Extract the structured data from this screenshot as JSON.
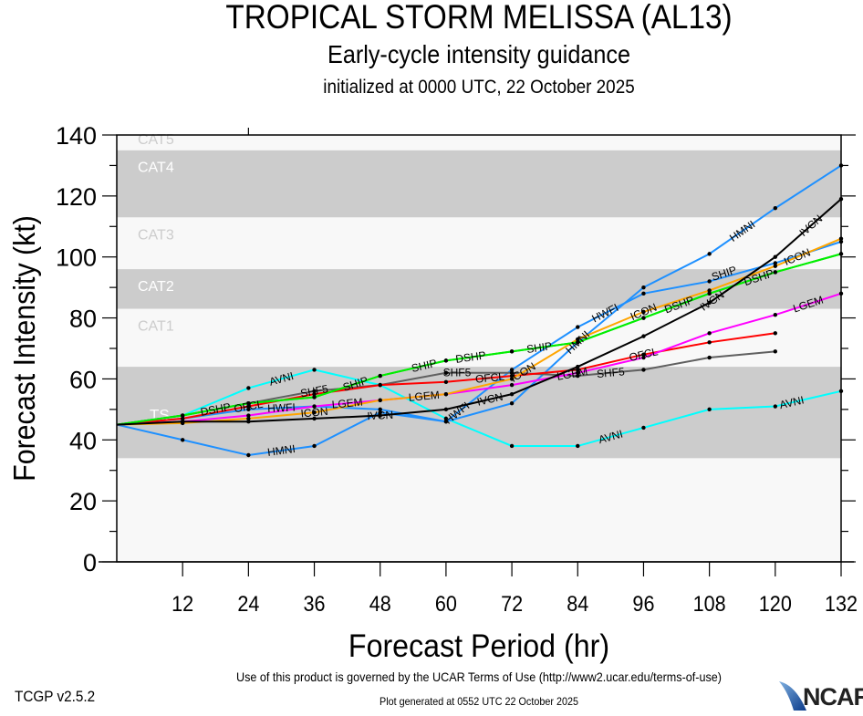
{
  "header": {
    "title": "TROPICAL STORM MELISSA (AL13)",
    "subtitle": "Early-cycle intensity guidance",
    "init_line": "initialized at 0000 UTC, 22 October 2025"
  },
  "footer": {
    "terms": "Use of this product is governed by the UCAR Terms of Use (http://www2.ucar.edu/terms-of-use)",
    "version": "TCGP v2.5.2",
    "generated": "Plot generated at 0552 UTC   22 October 2025",
    "logo": "NCAR"
  },
  "chart_data": {
    "type": "line",
    "title": "TROPICAL STORM MELISSA (AL13)",
    "xlabel": "Forecast Period (hr)",
    "ylabel": "Forecast Intensity (kt)",
    "xlim": [
      0,
      132
    ],
    "ylim": [
      0,
      140
    ],
    "xticks": [
      12,
      24,
      36,
      48,
      60,
      72,
      84,
      96,
      108,
      120,
      132
    ],
    "yticks": [
      0,
      20,
      40,
      60,
      80,
      100,
      120,
      140
    ],
    "grid": false,
    "category_bands": [
      {
        "label": "TS",
        "min": 34,
        "max": 64,
        "shade": "#cccccc",
        "label_color": "#ffffff"
      },
      {
        "label": "CAT1",
        "min": 64,
        "max": 83,
        "shade": "#f8f8f8",
        "label_color": "#cccccc"
      },
      {
        "label": "CAT2",
        "min": 83,
        "max": 96,
        "shade": "#cccccc",
        "label_color": "#ffffff"
      },
      {
        "label": "CAT3",
        "min": 96,
        "max": 113,
        "shade": "#f8f8f8",
        "label_color": "#cccccc"
      },
      {
        "label": "CAT4",
        "min": 113,
        "max": 135,
        "shade": "#cccccc",
        "label_color": "#ffffff"
      },
      {
        "label": "CAT5",
        "min": 135,
        "max": 140,
        "shade": "#f8f8f8",
        "label_color": "#cccccc"
      }
    ],
    "series": [
      {
        "name": "AVNI",
        "color": "#00ffff",
        "x": [
          0,
          12,
          24,
          36,
          48,
          60,
          72,
          84,
          96,
          108,
          120,
          132
        ],
        "y": [
          45,
          48,
          57,
          63,
          58,
          47,
          38,
          38,
          44,
          50,
          51,
          56
        ],
        "label_at": [
          30,
          90,
          123
        ]
      },
      {
        "name": "HMNI",
        "color": "#1e90ff",
        "x": [
          0,
          12,
          24,
          36,
          48,
          60,
          72,
          84,
          96,
          108,
          120,
          132
        ],
        "y": [
          45,
          40,
          35,
          38,
          49,
          46,
          52,
          72,
          90,
          101,
          116,
          130
        ],
        "label_at": [
          30,
          84,
          114
        ]
      },
      {
        "name": "HWFI",
        "color": "#1e90ff",
        "x": [
          0,
          12,
          24,
          36,
          48,
          60,
          72,
          84,
          96,
          108,
          120,
          132
        ],
        "y": [
          45,
          47,
          50,
          51,
          50,
          46,
          63,
          77,
          88,
          92,
          98,
          105
        ],
        "label_at": [
          30,
          62,
          86
        ]
      },
      {
        "name": "SHF5",
        "color": "#606060",
        "x": [
          0,
          12,
          24,
          36,
          48,
          60,
          72,
          84,
          96,
          108,
          120
        ],
        "y": [
          45,
          48,
          52,
          56,
          58,
          62,
          62,
          61,
          63,
          67,
          69
        ],
        "label_at": [
          30,
          62,
          90
        ]
      },
      {
        "name": "OFCL",
        "color": "#ff0000",
        "x": [
          0,
          12,
          24,
          36,
          48,
          60,
          72,
          84,
          96,
          108,
          120
        ],
        "y": [
          45,
          47,
          51,
          55,
          58,
          59,
          61,
          63,
          68,
          72,
          75
        ],
        "label_at": [
          30,
          62,
          90
        ]
      },
      {
        "name": "LGEM",
        "color": "#ff00ff",
        "x": [
          0,
          12,
          24,
          36,
          48,
          60,
          72,
          84,
          96,
          108,
          120,
          132
        ],
        "y": [
          45,
          46,
          48,
          51,
          53,
          55,
          58,
          62,
          67,
          75,
          81,
          88
        ],
        "label_at": [
          30,
          62,
          92,
          126
        ]
      },
      {
        "name": "ICON",
        "color": "#ffa500",
        "x": [
          0,
          12,
          24,
          36,
          48,
          60,
          72,
          84,
          96,
          108,
          120,
          132
        ],
        "y": [
          45,
          45.5,
          47,
          49,
          53,
          55,
          60,
          73,
          82,
          89,
          97,
          106
        ],
        "label_at": [
          30,
          62,
          90,
          124
        ]
      },
      {
        "name": "DSHP",
        "color": "#00ee00",
        "x": [
          0,
          12,
          24,
          36,
          48,
          60,
          72,
          84,
          96,
          108,
          120,
          132
        ],
        "y": [
          45,
          48,
          52,
          54,
          61,
          66,
          69,
          72,
          80,
          88,
          95,
          101
        ],
        "label_at": [
          30,
          60,
          92,
          126
        ]
      },
      {
        "name": "SHIP",
        "color": "#00ee00",
        "x": [
          0,
          12,
          24,
          36,
          48,
          60,
          72,
          84,
          96,
          108,
          120,
          132
        ],
        "y": [
          45,
          48,
          52,
          54,
          61,
          66,
          69,
          72,
          80,
          88,
          95,
          101
        ],
        "label_at": [
          30,
          62,
          92,
          122
        ]
      },
      {
        "name": "IVCN",
        "color": "#000000",
        "x": [
          0,
          12,
          24,
          36,
          48,
          60,
          72,
          84,
          96,
          108,
          120,
          132
        ],
        "y": [
          45,
          46,
          46,
          47,
          48,
          50,
          55,
          64,
          74,
          85,
          100,
          119
        ],
        "label_at": [
          30,
          62,
          92,
          122
        ]
      }
    ]
  }
}
